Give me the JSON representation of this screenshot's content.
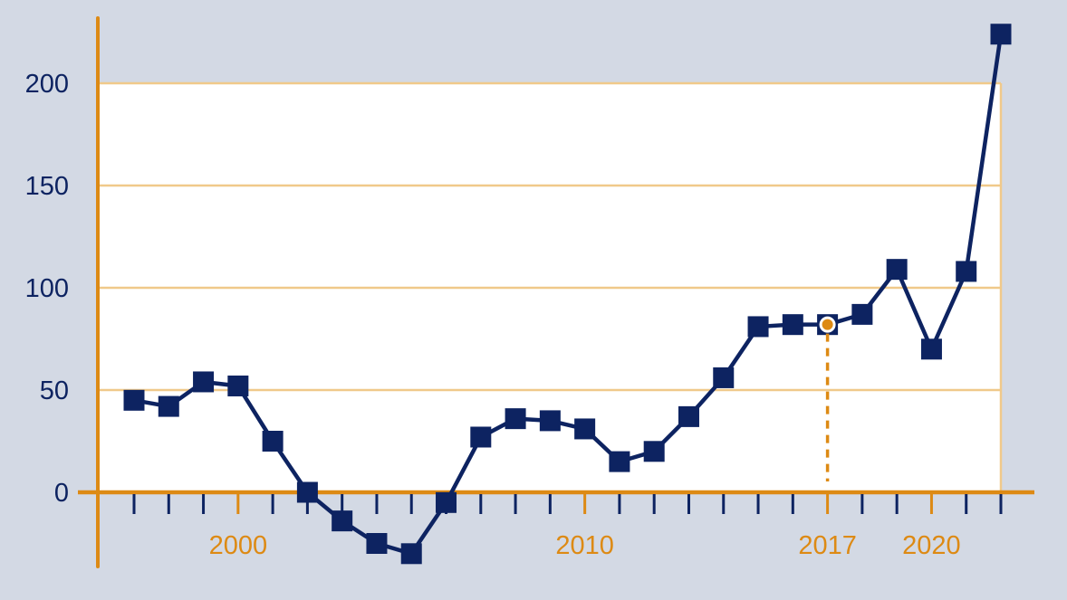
{
  "colors": {
    "background": "#d3d9e4",
    "plot_area": "#ffffff",
    "axis": "#dd8a14",
    "gridline": "#f0c98a",
    "series": "#0d2361",
    "y_tick_text": "#0d2361",
    "x_tick_text": "#dd8a14",
    "highlight_marker": "#dd8a14"
  },
  "chart_data": {
    "type": "line",
    "title": "",
    "xlabel": "",
    "ylabel": "",
    "grid": true,
    "legend": "none",
    "marker": "square",
    "xlim": [
      1996.5,
      2022.5
    ],
    "ylim": [
      -35,
      230
    ],
    "y_ticks": [
      0,
      50,
      100,
      150,
      200
    ],
    "y_tick_labels": [
      "0",
      "50",
      "100",
      "150",
      "200"
    ],
    "x_minor_ticks": [
      1997,
      1998,
      1999,
      2000,
      2001,
      2002,
      2003,
      2004,
      2005,
      2006,
      2007,
      2008,
      2009,
      2010,
      2011,
      2012,
      2013,
      2014,
      2015,
      2016,
      2017,
      2018,
      2019,
      2020,
      2021,
      2022
    ],
    "x_tick_labels": [
      {
        "year": 2000,
        "label": "2000"
      },
      {
        "year": 2010,
        "label": "2010"
      },
      {
        "year": 2017,
        "label": "2017"
      },
      {
        "year": 2020,
        "label": "2020"
      }
    ],
    "highlight": {
      "x": 2017,
      "y": 82
    },
    "series": [
      {
        "x": [
          1997,
          1998,
          1999,
          2000,
          2001,
          2002,
          2003,
          2004,
          2005,
          2006,
          2007,
          2008,
          2009,
          2010,
          2011,
          2012,
          2013,
          2014,
          2015,
          2016,
          2017,
          2018,
          2019,
          2020,
          2021,
          2022
        ],
        "values": [
          45,
          42,
          54,
          52,
          25,
          0,
          -14,
          -25,
          -30,
          -5,
          27,
          36,
          35,
          31,
          15,
          20,
          37,
          56,
          81,
          82,
          82,
          87,
          109,
          70,
          108,
          224
        ]
      }
    ]
  }
}
